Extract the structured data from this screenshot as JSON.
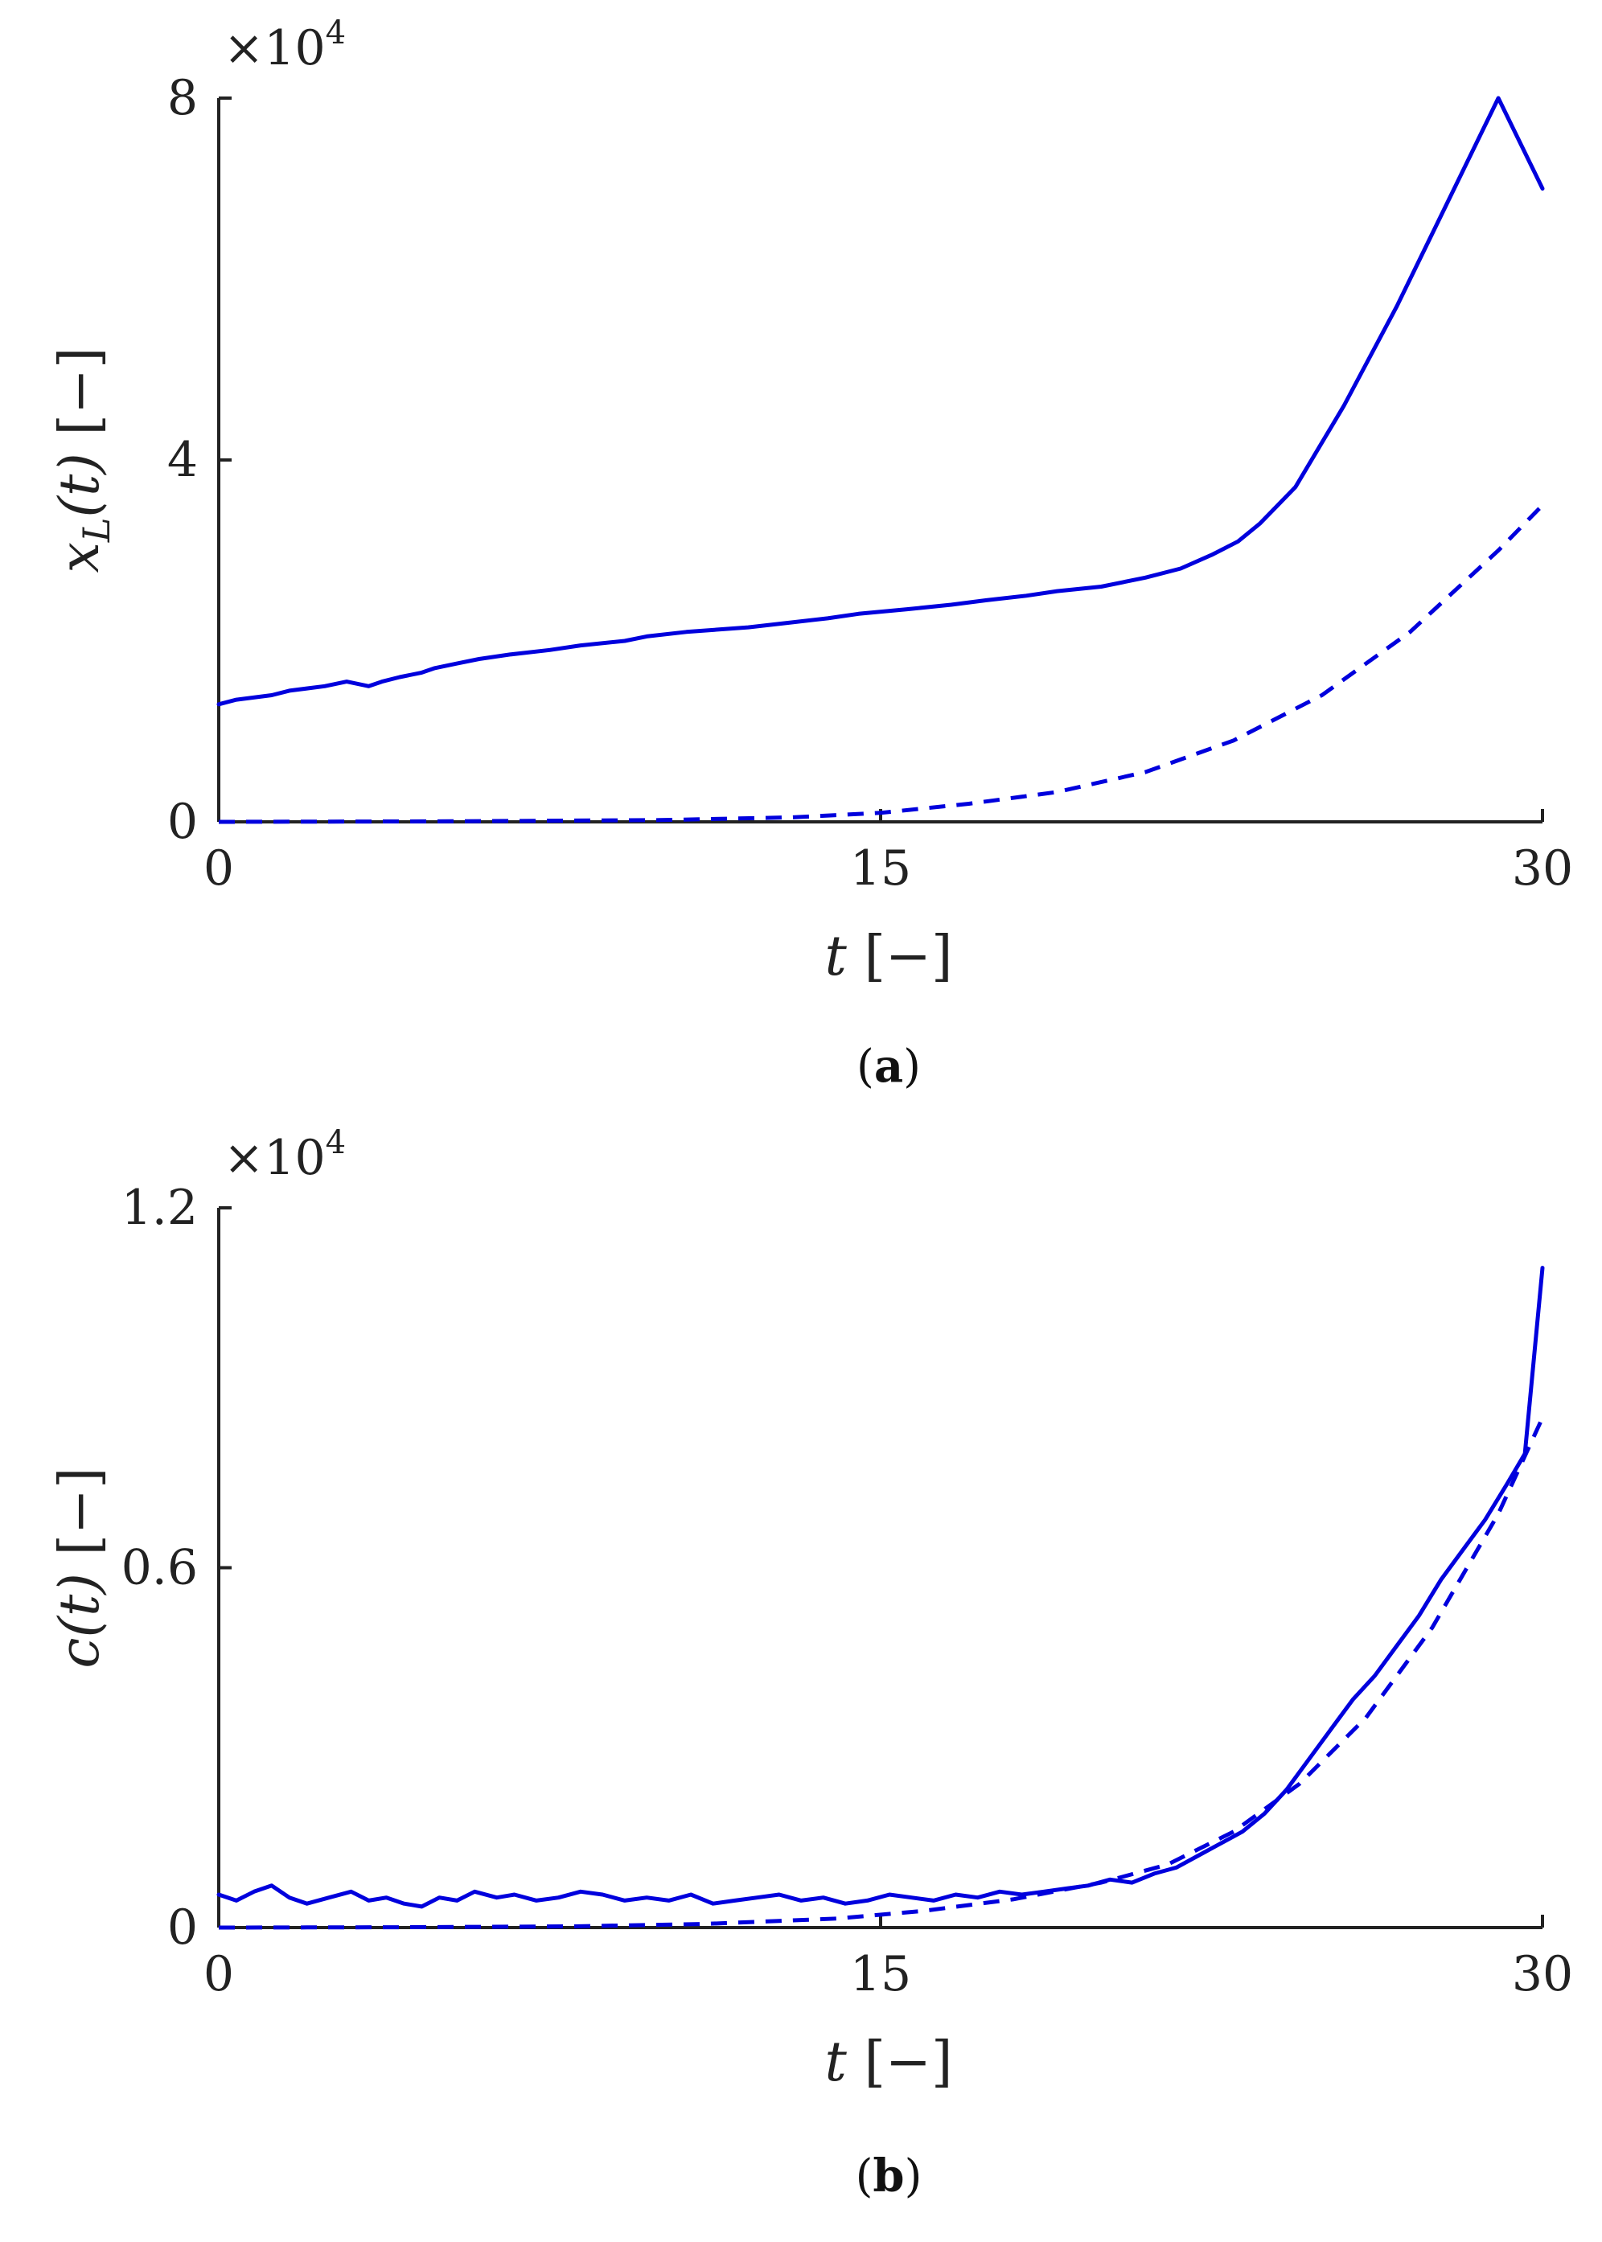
{
  "chart_data": [
    {
      "type": "line",
      "panel_label": "a",
      "xlabel": "t [−]",
      "ylabel": "x_L(t) [−]",
      "y_multiplier": "×10^4",
      "xlim": [
        0,
        30
      ],
      "ylim": [
        0,
        8
      ],
      "xticks": [
        0,
        15,
        30
      ],
      "yticks": [
        0,
        4,
        8
      ],
      "grid": false,
      "color": "#0000dd",
      "series": [
        {
          "style": "solid",
          "x": [
            0,
            0.4,
            1.2,
            1.6,
            2.4,
            2.9,
            3.4,
            3.7,
            4.1,
            4.6,
            4.9,
            5.4,
            5.9,
            6.6,
            7.5,
            8.2,
            9.2,
            9.7,
            10.6,
            12.0,
            12.9,
            13.8,
            14.5,
            15.6,
            16.6,
            17.4,
            18.3,
            19.0,
            20.0,
            21.0,
            21.8,
            22.5,
            23.1,
            23.6,
            24.4,
            25.5,
            26.7,
            27.8,
            29.0,
            30.0
          ],
          "y": [
            1.3,
            1.35,
            1.4,
            1.45,
            1.5,
            1.55,
            1.5,
            1.55,
            1.6,
            1.65,
            1.7,
            1.75,
            1.8,
            1.85,
            1.9,
            1.95,
            2.0,
            2.05,
            2.1,
            2.15,
            2.2,
            2.25,
            2.3,
            2.35,
            2.4,
            2.45,
            2.5,
            2.55,
            2.6,
            2.7,
            2.8,
            2.95,
            3.1,
            3.3,
            3.7,
            4.6,
            5.7,
            6.8,
            8.2,
            7.0
          ]
        },
        {
          "style": "dashed",
          "x": [
            0,
            5,
            10,
            13,
            15,
            17,
            19,
            21,
            23,
            25,
            27,
            29,
            30
          ],
          "y": [
            0.0,
            0.005,
            0.02,
            0.05,
            0.1,
            0.2,
            0.33,
            0.55,
            0.9,
            1.4,
            2.1,
            3.0,
            3.5
          ]
        }
      ]
    },
    {
      "type": "line",
      "panel_label": "b",
      "xlabel": "t [−]",
      "ylabel": "c(t) [−]",
      "y_multiplier": "×10^4",
      "xlim": [
        0,
        30
      ],
      "ylim": [
        0,
        1.2
      ],
      "xticks": [
        0,
        15,
        30
      ],
      "yticks": [
        0,
        0.6,
        1.2
      ],
      "grid": false,
      "color": "#0000dd",
      "series": [
        {
          "style": "solid",
          "x": [
            0,
            0.4,
            0.8,
            1.2,
            1.6,
            2.0,
            2.5,
            3.0,
            3.4,
            3.8,
            4.2,
            4.6,
            5.0,
            5.4,
            5.8,
            6.3,
            6.7,
            7.2,
            7.7,
            8.2,
            8.7,
            9.2,
            9.7,
            10.2,
            10.7,
            11.2,
            11.7,
            12.2,
            12.7,
            13.2,
            13.7,
            14.2,
            14.7,
            15.2,
            15.7,
            16.2,
            16.7,
            17.2,
            17.7,
            18.2,
            18.7,
            19.2,
            19.7,
            20.2,
            20.7,
            21.2,
            21.7,
            22.2,
            22.7,
            23.2,
            23.7,
            24.2,
            24.7,
            25.2,
            25.7,
            26.2,
            26.7,
            27.2,
            27.7,
            28.2,
            28.7,
            29.2,
            29.6,
            30.0
          ],
          "y": [
            0.055,
            0.045,
            0.06,
            0.07,
            0.05,
            0.04,
            0.05,
            0.06,
            0.045,
            0.05,
            0.04,
            0.035,
            0.05,
            0.045,
            0.06,
            0.05,
            0.055,
            0.045,
            0.05,
            0.06,
            0.055,
            0.045,
            0.05,
            0.045,
            0.055,
            0.04,
            0.045,
            0.05,
            0.055,
            0.045,
            0.05,
            0.04,
            0.045,
            0.055,
            0.05,
            0.045,
            0.055,
            0.05,
            0.06,
            0.055,
            0.06,
            0.065,
            0.07,
            0.08,
            0.075,
            0.09,
            0.1,
            0.12,
            0.14,
            0.16,
            0.19,
            0.23,
            0.28,
            0.33,
            0.38,
            0.42,
            0.47,
            0.52,
            0.58,
            0.63,
            0.68,
            0.74,
            0.79,
            1.1
          ]
        },
        {
          "style": "dashed",
          "x": [
            0,
            4,
            8,
            11,
            14,
            16,
            18,
            20,
            21.5,
            23,
            24.5,
            26,
            27.5,
            29,
            30
          ],
          "y": [
            0.0,
            0.0005,
            0.002,
            0.006,
            0.015,
            0.028,
            0.047,
            0.075,
            0.105,
            0.16,
            0.24,
            0.35,
            0.5,
            0.69,
            0.85
          ]
        }
      ]
    }
  ]
}
